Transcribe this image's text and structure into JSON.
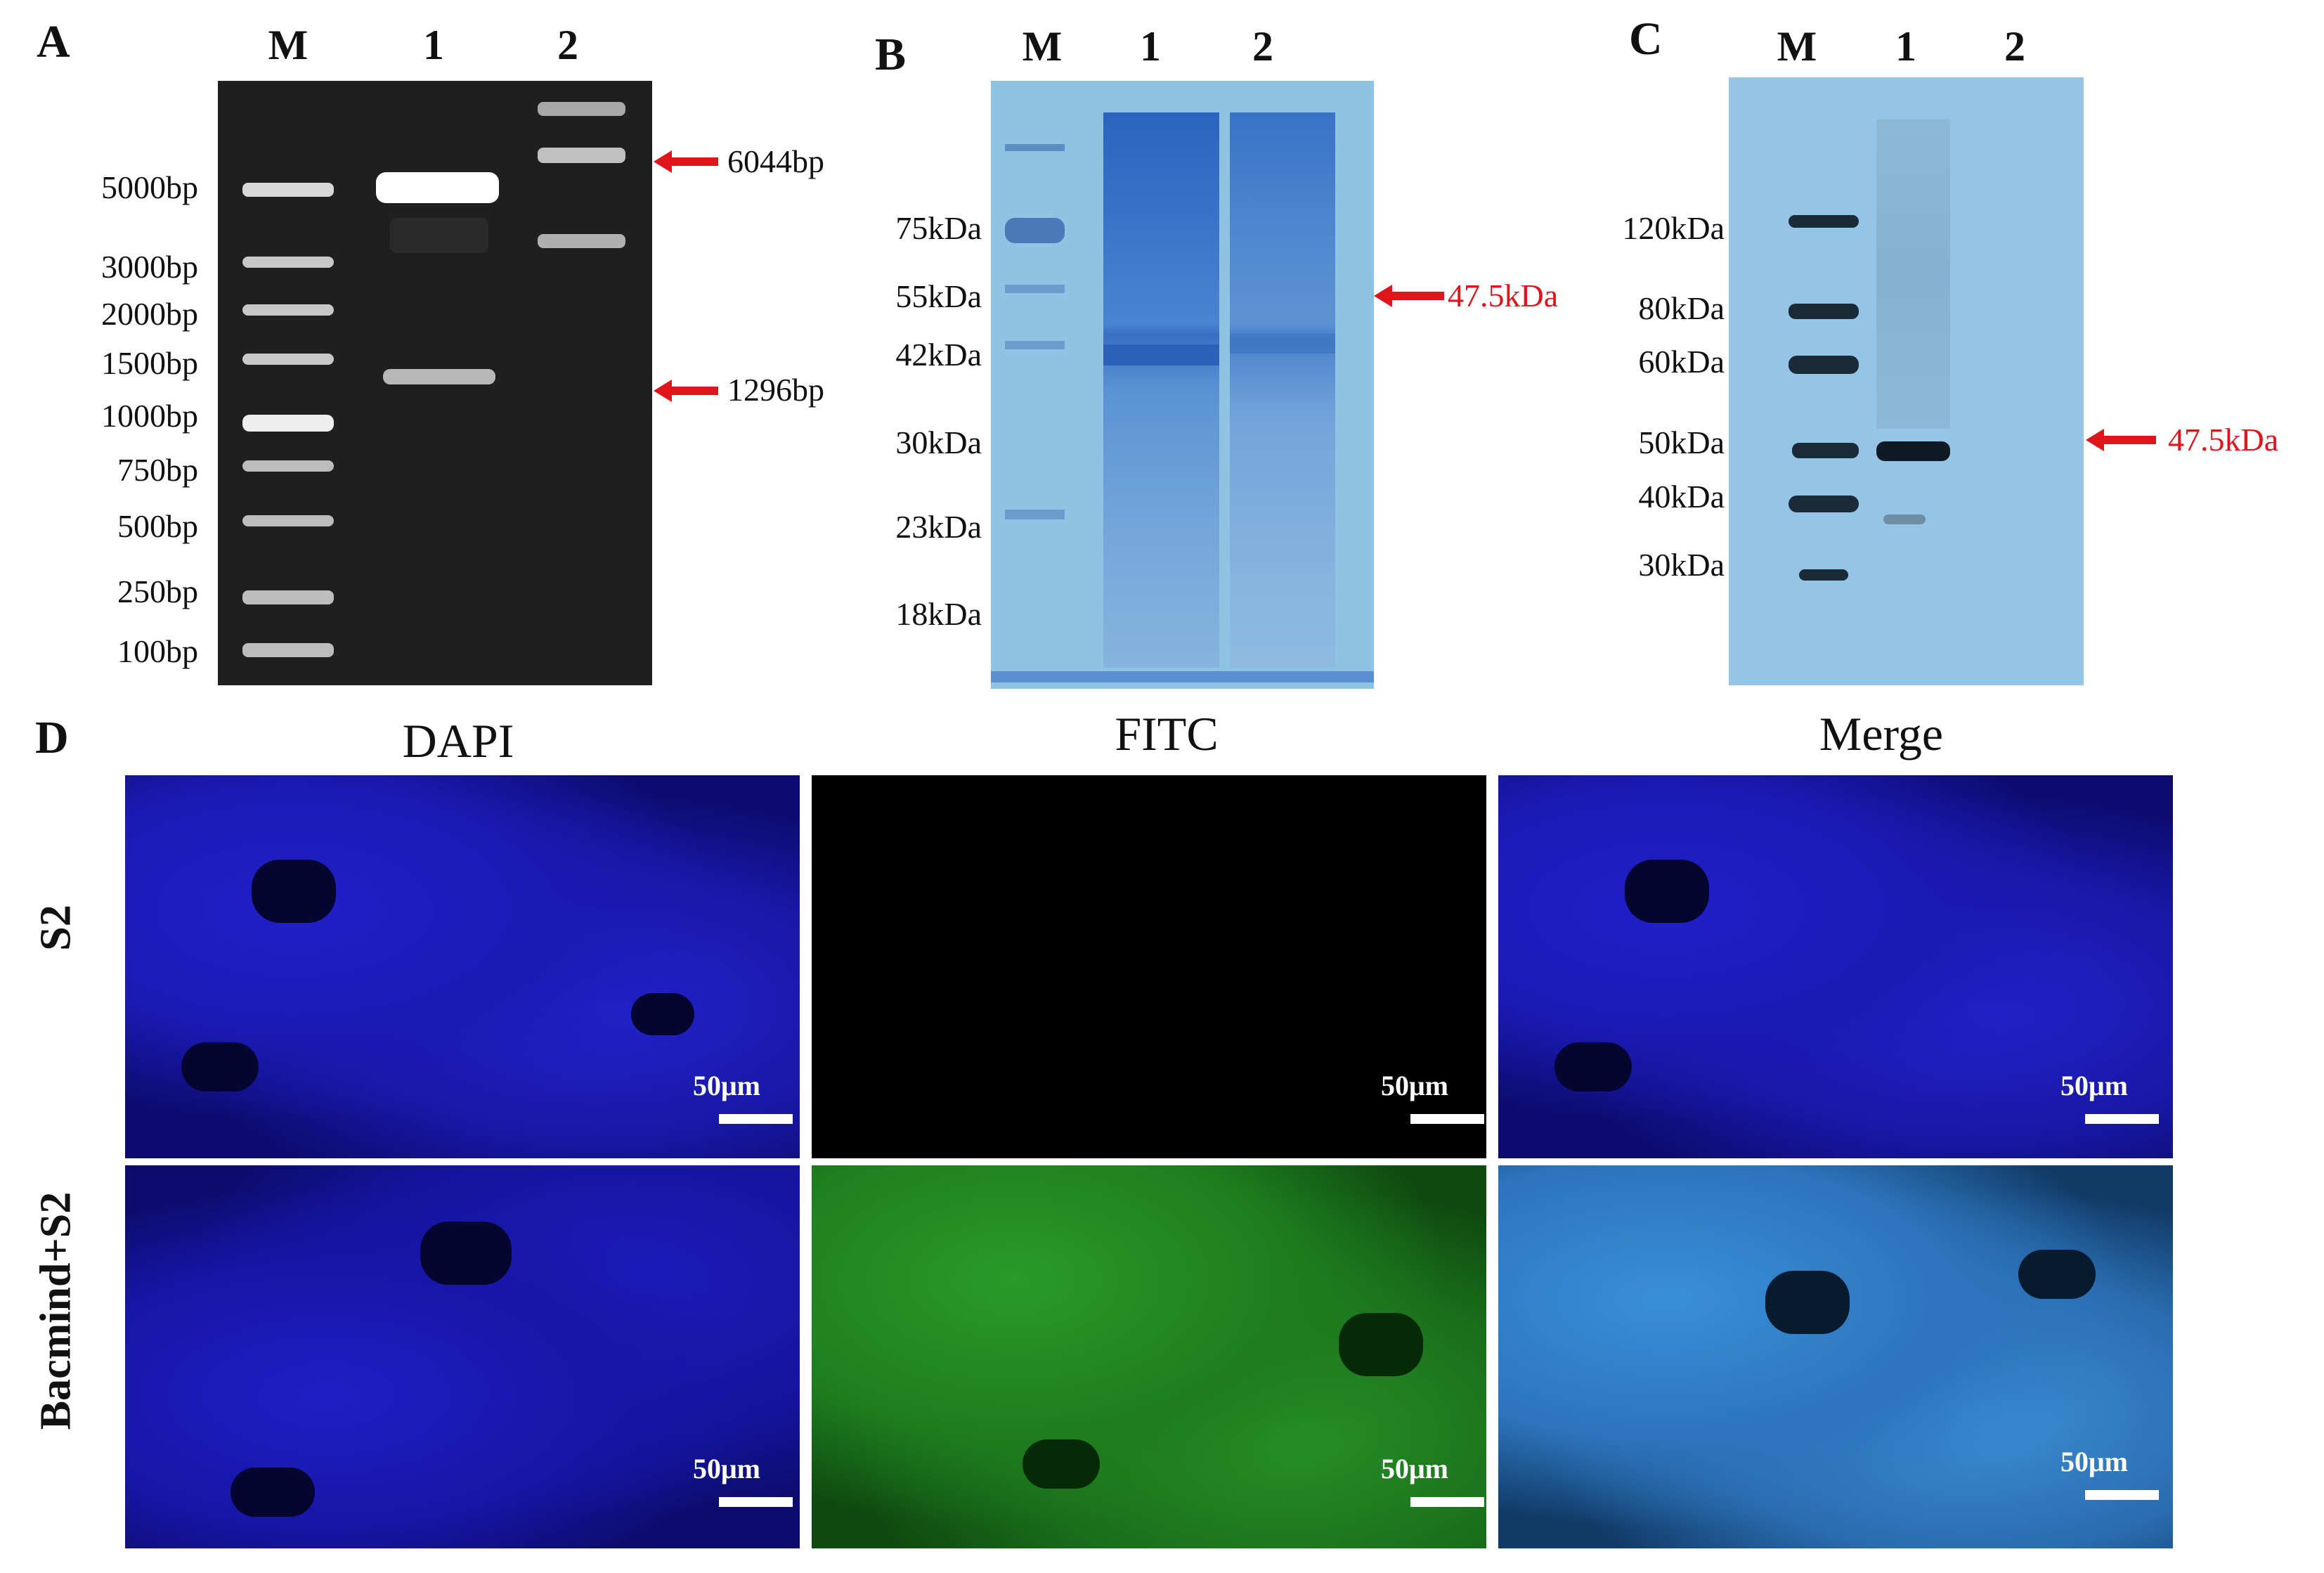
{
  "panels": {
    "A": {
      "letter": "A",
      "lanes": [
        "M",
        "1",
        "2"
      ],
      "markers": [
        "5000bp",
        "3000bp",
        "2000bp",
        "1500bp",
        "1000bp",
        "750bp",
        "500bp",
        "250bp",
        "100bp"
      ],
      "annotations": [
        "6044bp",
        "1296bp"
      ],
      "gel_color": "#1f1f1f",
      "arrow_color": "#e0151b"
    },
    "B": {
      "letter": "B",
      "lanes": [
        "M",
        "1",
        "2"
      ],
      "markers": [
        "75kDa",
        "55kDa",
        "42kDa",
        "30kDa",
        "23kDa",
        "18kDa"
      ],
      "annotations": [
        "47.5kDa"
      ],
      "gel_color": "#8fc3e4",
      "arrow_color": "#e0151b"
    },
    "C": {
      "letter": "C",
      "lanes": [
        "M",
        "1",
        "2"
      ],
      "markers": [
        "120kDa",
        "80kDa",
        "60kDa",
        "50kDa",
        "40kDa",
        "30kDa"
      ],
      "annotations": [
        "47.5kDa"
      ],
      "gel_color": "#95c5e6",
      "arrow_color": "#e0151b"
    },
    "D": {
      "letter": "D",
      "columns": [
        "DAPI",
        "FITC",
        "Merge"
      ],
      "rows": [
        "S2",
        "Bacmind+S2"
      ],
      "scale_bar": "50μm",
      "colors": {
        "dapi": "#1a1ad0",
        "fitc": "#2a9a2a",
        "merge": "#3a8fd8",
        "empty": "#000000"
      }
    }
  }
}
